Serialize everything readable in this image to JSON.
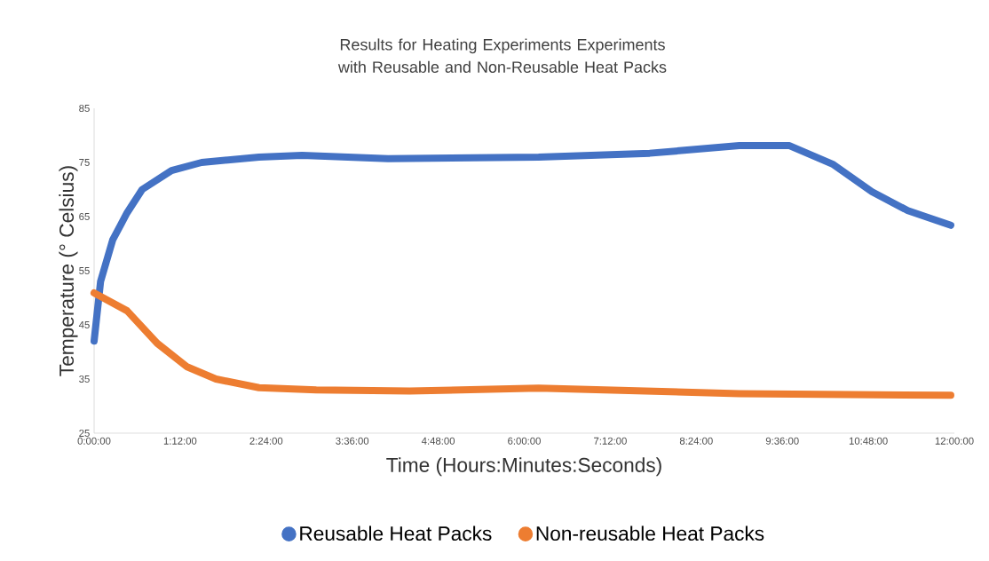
{
  "chart_data": {
    "type": "line",
    "title": "Results for Heating Experiments Experiments with Reusable and Non-Reusable Heat Packs",
    "xlabel": "Time (Hours:Minutes:Seconds)",
    "ylabel": "Temperature (° Celsius)",
    "xlim": [
      0,
      12
    ],
    "ylim": [
      25,
      85
    ],
    "xticks": [
      {
        "value": 0,
        "label": "0:00:00"
      },
      {
        "value": 1.2,
        "label": "1:12:00"
      },
      {
        "value": 2.4,
        "label": "2:24:00"
      },
      {
        "value": 3.6,
        "label": "3:36:00"
      },
      {
        "value": 4.8,
        "label": "4:48:00"
      },
      {
        "value": 6,
        "label": "6:00:00"
      },
      {
        "value": 7.2,
        "label": "7:12:00"
      },
      {
        "value": 8.4,
        "label": "8:24:00"
      },
      {
        "value": 9.6,
        "label": "9:36:00"
      },
      {
        "value": 10.8,
        "label": "10:48:00"
      },
      {
        "value": 12,
        "label": "12:00:00"
      }
    ],
    "yticks": [
      25,
      35,
      45,
      55,
      65,
      75,
      85
    ],
    "grid": false,
    "legend": "bottom",
    "marker": "none",
    "line_style": "solid",
    "series": [
      {
        "name": "Reusable Heat Packs",
        "color": "#4472c4",
        "x": [
          0,
          0.09,
          0.26,
          0.46,
          0.67,
          1.08,
          1.5,
          2.3,
          2.9,
          4.1,
          6.2,
          7.75,
          9.0,
          9.7,
          10.3,
          10.85,
          11.35,
          11.95
        ],
        "values": [
          42,
          53,
          60.7,
          65.7,
          70,
          73.5,
          75,
          76,
          76.3,
          75.7,
          76,
          76.7,
          78.1,
          78.1,
          74.7,
          69.6,
          66.1,
          63.4
        ]
      },
      {
        "name": "Non-reusable Heat Packs",
        "color": "#ed7d31",
        "x": [
          0,
          0.46,
          0.88,
          1.29,
          1.7,
          2.3,
          3.1,
          4.4,
          6.2,
          9.0,
          11.95
        ],
        "values": [
          50.9,
          47.6,
          41.6,
          37.3,
          35,
          33.4,
          33,
          32.8,
          33.3,
          32.3,
          32
        ]
      }
    ]
  }
}
